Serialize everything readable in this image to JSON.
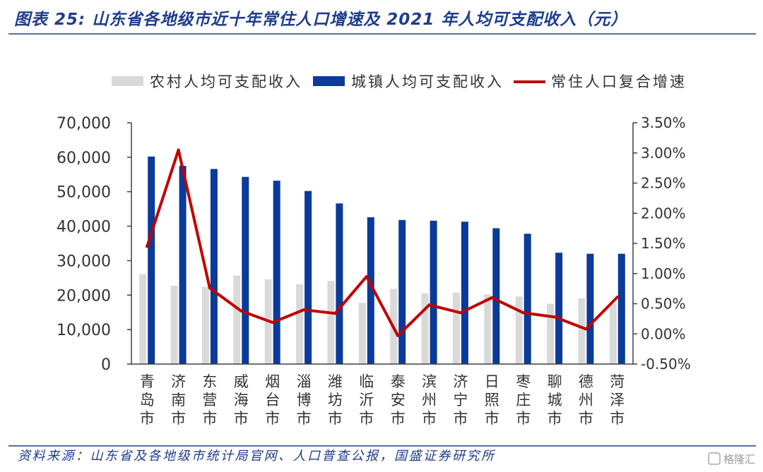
{
  "chart_data": {
    "type": "bar+line",
    "title": "图表 25: 山东省各地级市近十年常住人口增速及 2021 年人均可支配收入（元）",
    "categories": [
      "青岛市",
      "济南市",
      "东营市",
      "威海市",
      "烟台市",
      "淄博市",
      "潍坊市",
      "临沂市",
      "泰安市",
      "滨州市",
      "济宁市",
      "日照市",
      "枣庄市",
      "聊城市",
      "德州市",
      "菏泽市"
    ],
    "series": [
      {
        "name": "农村人均可支配收入",
        "type": "bar",
        "axis": "left",
        "color": "#d9d9d9",
        "values": [
          26100,
          22700,
          22400,
          25700,
          24600,
          23100,
          24100,
          17800,
          21800,
          20500,
          20700,
          20200,
          19600,
          17500,
          19100,
          17500
        ]
      },
      {
        "name": "城镇人均可支配收入",
        "type": "bar",
        "axis": "left",
        "color": "#0a3a9a",
        "values": [
          60200,
          57500,
          56600,
          54300,
          53200,
          50200,
          46600,
          42600,
          41800,
          41600,
          41300,
          39400,
          37800,
          32300,
          32000,
          32000
        ]
      },
      {
        "name": "常住人口复合增速",
        "type": "line",
        "axis": "right",
        "color": "#c00000",
        "values": [
          1.45,
          3.05,
          0.76,
          0.38,
          0.19,
          0.4,
          0.34,
          0.95,
          -0.03,
          0.48,
          0.35,
          0.6,
          0.35,
          0.28,
          0.08,
          0.61
        ]
      }
    ],
    "y_left": {
      "range": [
        0,
        70000
      ],
      "ticks": [
        0,
        10000,
        20000,
        30000,
        40000,
        50000,
        60000,
        70000
      ],
      "tick_labels": [
        "0",
        "10,000",
        "20,000",
        "30,000",
        "40,000",
        "50,000",
        "60,000",
        "70,000"
      ]
    },
    "y_right": {
      "range": [
        -0.5,
        3.5
      ],
      "ticks": [
        -0.5,
        0,
        0.5,
        1.0,
        1.5,
        2.0,
        2.5,
        3.0,
        3.5
      ],
      "tick_labels": [
        "-0.50%",
        "0.00%",
        "0.50%",
        "1.00%",
        "1.50%",
        "2.00%",
        "2.50%",
        "3.00%",
        "3.50%"
      ]
    },
    "xlabel": "",
    "ylabel": "",
    "legend": "top",
    "grid": false
  },
  "source": "资料来源：山东省及各地级市统计局官网、人口普查公报，国盛证券研究所",
  "watermark": "格隆汇",
  "colors": {
    "title": "#1f3d8c",
    "axis": "#404040"
  }
}
